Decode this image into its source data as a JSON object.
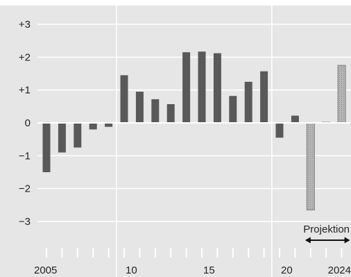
{
  "chart_data": {
    "type": "bar",
    "x": [
      2005,
      2006,
      2007,
      2008,
      2009,
      2010,
      2011,
      2012,
      2013,
      2014,
      2015,
      2016,
      2017,
      2018,
      2019,
      2020,
      2021,
      2022,
      2023,
      2024
    ],
    "series": [
      {
        "values": [
          -1.5,
          -0.9,
          -0.75,
          -0.2,
          -0.12,
          1.45,
          0.95,
          0.72,
          0.57,
          2.15,
          2.17,
          2.12,
          0.82,
          1.25,
          1.57,
          -0.45,
          0.22,
          -2.65,
          0.02,
          1.75
        ],
        "projection_from_index": 17
      }
    ],
    "ylim": [
      -4,
      3.5
    ],
    "y_ticks": [
      {
        "value": 3,
        "label": "+3"
      },
      {
        "value": 2,
        "label": "+2"
      },
      {
        "value": 1,
        "label": "+1"
      },
      {
        "value": 0,
        "label": "0"
      },
      {
        "value": -1,
        "label": "−1"
      },
      {
        "value": -2,
        "label": "−2"
      },
      {
        "value": -3,
        "label": "−3"
      }
    ],
    "x_tick_labels": [
      {
        "x": 2005,
        "label": "2005"
      },
      {
        "x": 2010,
        "label": "10"
      },
      {
        "x": 2015,
        "label": "15"
      },
      {
        "x": 2020,
        "label": "20"
      },
      {
        "x": 2024,
        "label": "2024"
      }
    ],
    "vertical_gridlines_at": [
      2009.5,
      2019.5
    ],
    "horizontal_grid": true,
    "annotation": {
      "label": "Projektion",
      "from_x": 2022,
      "to_x": 2024
    },
    "colors": {
      "bar": "#595959",
      "projection_bar": "#b5b5b5",
      "projection_bar_border": "#7a7a7a",
      "grid": "#ffffff",
      "background": "#e6e6e6",
      "axis_zero": "#ffffff",
      "text": "#222222"
    }
  }
}
